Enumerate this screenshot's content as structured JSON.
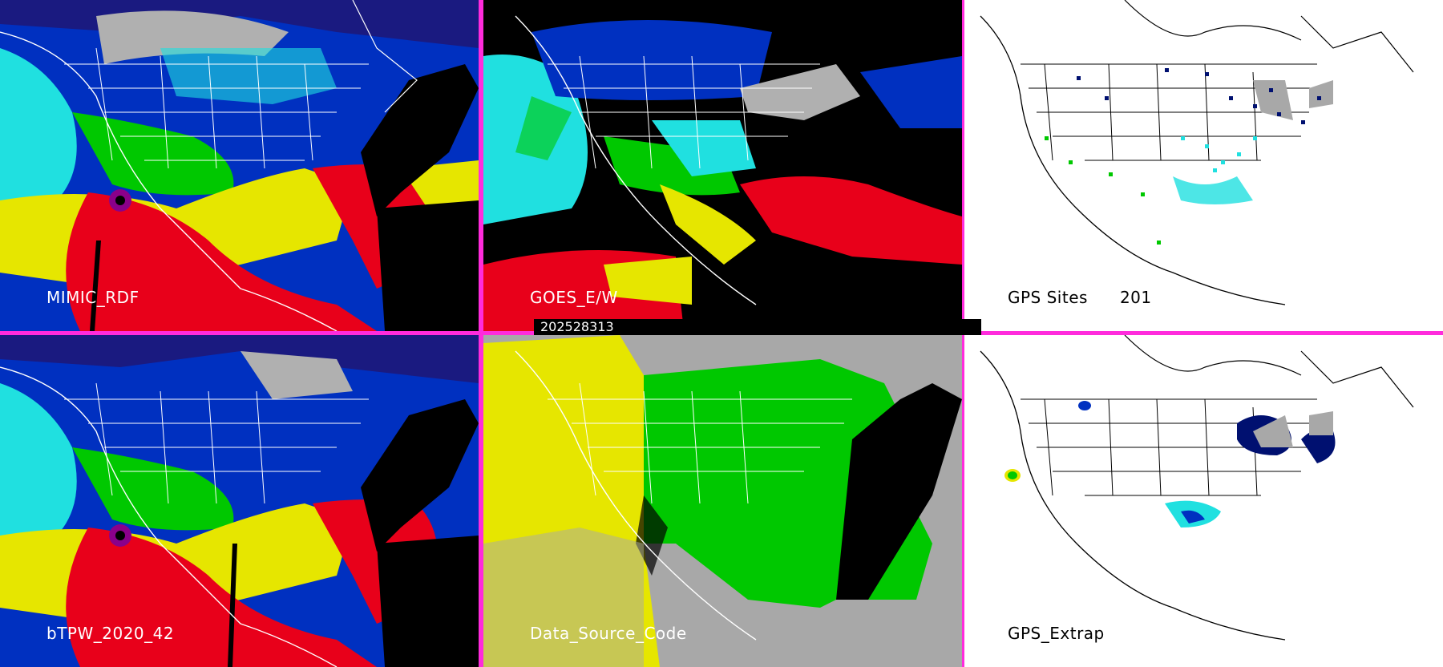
{
  "panels": [
    {
      "label": "MIMIC_RDF"
    },
    {
      "label": "GOES_E/W"
    },
    {
      "label": "GPS Sites",
      "count": "201"
    },
    {
      "label": "bTPW_2020_42"
    },
    {
      "label": "Data_Source_Code"
    },
    {
      "label": "GPS_Extrap"
    }
  ],
  "timestamp": "202528313",
  "colors": {
    "divider": "#ff2bdc",
    "red": "#e8001a",
    "yellow": "#e6e600",
    "green": "#00c800",
    "cyan": "#20e0e0",
    "blue": "#0030c0",
    "navy": "#001070",
    "gray": "#a8a8a8",
    "white": "#ffffff",
    "black": "#000000"
  }
}
